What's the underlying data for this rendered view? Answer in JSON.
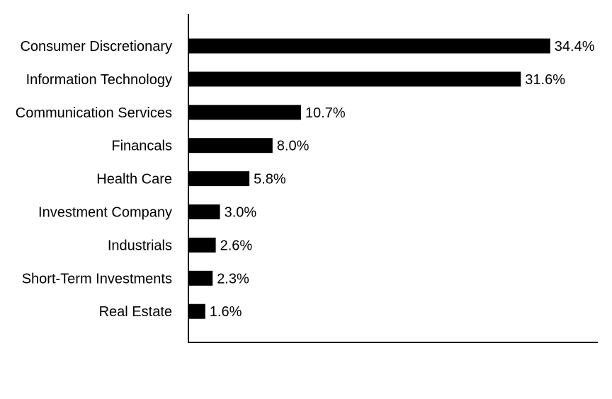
{
  "chart_data": {
    "type": "bar",
    "orientation": "horizontal",
    "categories": [
      "Consumer Discretionary",
      "Information Technology",
      "Communication Services",
      "Financals",
      "Health Care",
      "Investment Company",
      "Industrials",
      "Short-Term Investments",
      "Real Estate"
    ],
    "values": [
      34.4,
      31.6,
      10.7,
      8.0,
      5.8,
      3.0,
      2.6,
      2.3,
      1.6
    ],
    "value_labels": [
      "34.4%",
      "31.6%",
      "10.7%",
      "8.0%",
      "5.8%",
      "3.0%",
      "2.6%",
      "2.3%",
      "1.6%"
    ],
    "unit": "%",
    "xlim": [
      0,
      39
    ],
    "grid": false,
    "legend": "none",
    "bar_color": "#000000"
  }
}
